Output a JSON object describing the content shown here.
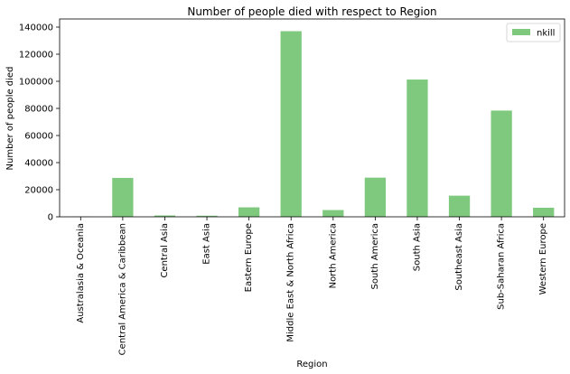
{
  "chart_data": {
    "type": "bar",
    "title": "Number of people died with respect to Region",
    "xlabel": "Region",
    "ylabel": "Number of people died",
    "categories": [
      "Australasia & Oceania",
      "Central America & Caribbean",
      "Central Asia",
      "East Asia",
      "Eastern Europe",
      "Middle East & North Africa",
      "North America",
      "South America",
      "South Asia",
      "Southeast Asia",
      "Sub-Saharan Africa",
      "Western Europe"
    ],
    "series": [
      {
        "name": "nkill",
        "color": "#7fc97f",
        "values": [
          150,
          28700,
          1000,
          800,
          7000,
          137000,
          5000,
          28900,
          101300,
          15600,
          78400,
          6700
        ]
      }
    ],
    "ylim": [
      0,
      146000
    ],
    "yticks": [
      0,
      20000,
      40000,
      60000,
      80000,
      100000,
      120000,
      140000
    ],
    "grid": false,
    "legend_position": "top-right"
  }
}
